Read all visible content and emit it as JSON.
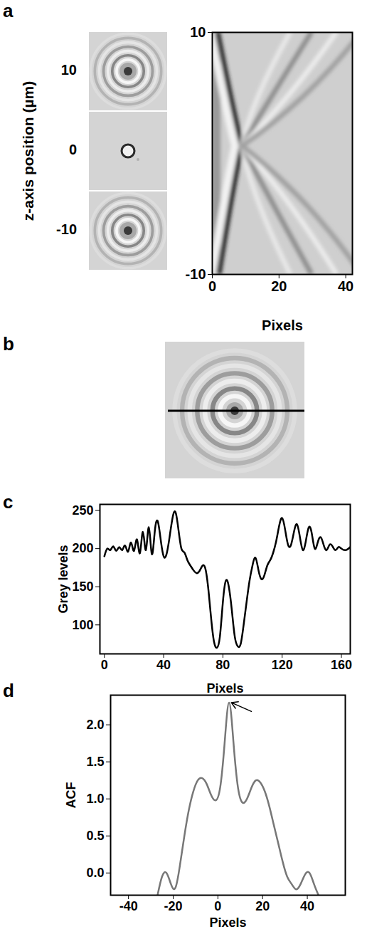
{
  "chart_data": [
    {
      "panel": "a",
      "type": "image_stack",
      "ylabel": "z-axis position (µm)",
      "z_positions": [
        10,
        0,
        -10
      ]
    },
    {
      "panel": "a",
      "type": "image",
      "xlabel": "Pixels",
      "ylabel": null,
      "xlim": [
        0,
        42
      ],
      "ylim": [
        -10,
        10
      ],
      "xticks": [
        0,
        20,
        40
      ],
      "yticks": [
        -10,
        10
      ]
    },
    {
      "panel": "b",
      "type": "image"
    },
    {
      "panel": "c",
      "type": "line",
      "xlabel": "Pixels",
      "ylabel": "Grey levels",
      "color": "#000000",
      "x": [
        0,
        2,
        4,
        6,
        8,
        10,
        12,
        14,
        16,
        18,
        20,
        22,
        24,
        26,
        28,
        30,
        32,
        34,
        36,
        38,
        40,
        42,
        44,
        46,
        48,
        50,
        52,
        54,
        56,
        58,
        60,
        62,
        64,
        66,
        68,
        70,
        72,
        74,
        76,
        78,
        80,
        82,
        84,
        86,
        88,
        90,
        92,
        94,
        96,
        98,
        100,
        102,
        104,
        106,
        108,
        110,
        112,
        114,
        116,
        118,
        120,
        122,
        124,
        126,
        128,
        130,
        132,
        134,
        136,
        138,
        140,
        142,
        144,
        146,
        148,
        150,
        152,
        154,
        156,
        158,
        160,
        163,
        166
      ],
      "values": [
        190,
        200,
        198,
        203,
        197,
        202,
        198,
        204,
        196,
        208,
        197,
        212,
        194,
        222,
        198,
        228,
        193,
        222,
        236,
        212,
        190,
        193,
        215,
        240,
        248,
        225,
        200,
        195,
        185,
        178,
        172,
        168,
        170,
        177,
        175,
        150,
        110,
        78,
        70,
        85,
        130,
        158,
        150,
        120,
        85,
        72,
        75,
        100,
        130,
        158,
        178,
        188,
        172,
        160,
        165,
        178,
        185,
        195,
        210,
        230,
        240,
        225,
        205,
        205,
        222,
        232,
        215,
        198,
        210,
        228,
        220,
        200,
        208,
        215,
        205,
        198,
        205,
        203,
        198,
        202,
        200,
        198,
        202
      ],
      "xlim": [
        -3,
        166
      ],
      "ylim": [
        62,
        258
      ],
      "xticks": [
        0,
        40,
        80,
        120,
        160
      ],
      "yticks": [
        100,
        150,
        200,
        250
      ]
    },
    {
      "panel": "d",
      "type": "line",
      "xlabel": "Pixels",
      "ylabel": "ACF",
      "color": "#777777",
      "x": [
        -27,
        -25,
        -23,
        -21,
        -19,
        -17,
        -15,
        -13,
        -11,
        -9,
        -7,
        -5,
        -3,
        -1,
        1,
        3,
        5,
        7,
        9,
        11,
        13,
        15,
        17,
        19,
        21,
        23,
        25,
        27,
        29,
        31,
        33,
        35,
        37,
        39,
        41,
        43,
        45
      ],
      "values": [
        -0.3,
        -0.05,
        0.0,
        -0.15,
        -0.2,
        0.1,
        0.5,
        0.85,
        1.1,
        1.25,
        1.28,
        1.2,
        1.05,
        0.98,
        1.15,
        1.75,
        2.3,
        1.75,
        1.15,
        0.95,
        1.0,
        1.15,
        1.25,
        1.22,
        1.1,
        0.9,
        0.65,
        0.4,
        0.15,
        -0.05,
        -0.15,
        -0.22,
        -0.15,
        -0.02,
        0.0,
        -0.15,
        -0.3
      ],
      "xlim": [
        -48,
        57
      ],
      "ylim": [
        -0.3,
        2.4
      ],
      "xticks": [
        -40,
        -20,
        0,
        20,
        40
      ],
      "yticks": [
        {
          "value": 0,
          "label": "0.0"
        },
        {
          "value": 0.5,
          "label": "0.5"
        },
        {
          "value": 1,
          "label": "1.0"
        },
        {
          "value": 1.5,
          "label": "1.5"
        },
        {
          "value": 2,
          "label": "2.0"
        }
      ],
      "annotations": [
        {
          "type": "arrow",
          "from": [
            15,
            2.18
          ],
          "to": [
            6,
            2.3
          ]
        }
      ]
    }
  ]
}
